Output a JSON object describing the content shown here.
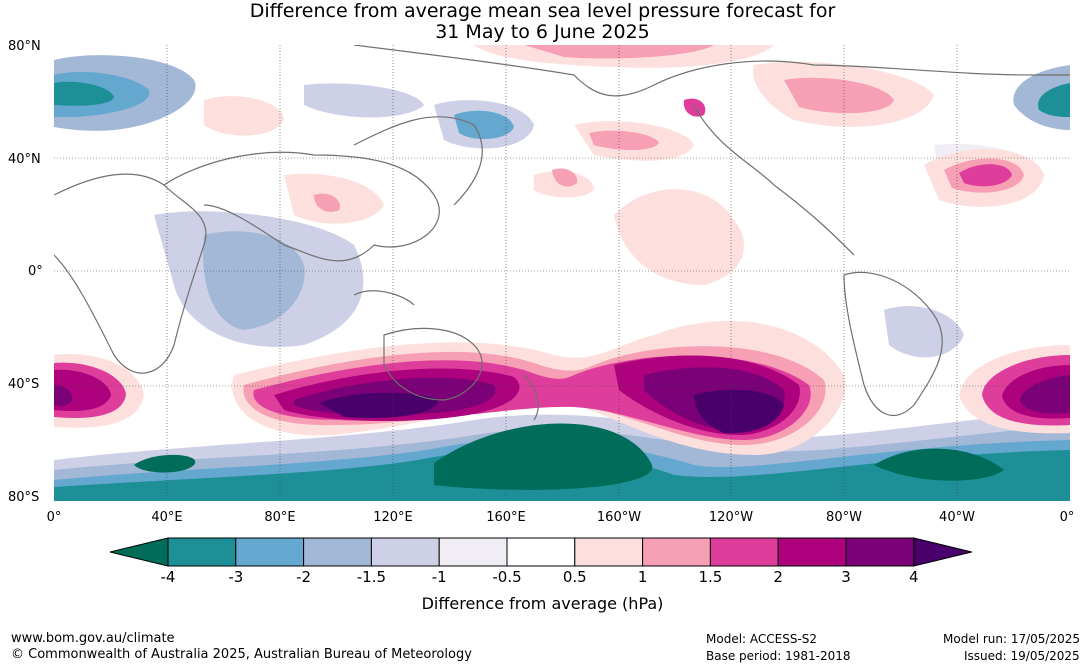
{
  "title_line1": "Difference from average mean sea level pressure forecast for",
  "title_line2": "31 May to 6 June 2025",
  "lat_labels": [
    "80°N",
    "40°N",
    "0°",
    "40°S",
    "80°S"
  ],
  "lon_labels": [
    "0°",
    "40°E",
    "80°E",
    "120°E",
    "160°E",
    "160°W",
    "120°W",
    "80°W",
    "40°W",
    "0°"
  ],
  "colorbar": {
    "label": "Difference from average (hPa)",
    "ticks": [
      "-4",
      "-3",
      "-2",
      "-1.5",
      "-1",
      "-0.5",
      "0.5",
      "1",
      "1.5",
      "2",
      "3",
      "4"
    ],
    "colors": [
      "#006d5b",
      "#1d8f97",
      "#64a8d0",
      "#a3b7d6",
      "#cdd0e6",
      "#f1edf5",
      "#ffffff",
      "#fde0dd",
      "#f79fb5",
      "#de3d9b",
      "#ae017e",
      "#7a0177",
      "#49006a"
    ]
  },
  "footer": {
    "url": "www.bom.gov.au/climate",
    "copyright": "© Commonwealth of Australia 2025, Australian Bureau of Meteorology",
    "model": "Model: ACCESS-S2",
    "base_period": "Base period: 1981-2018",
    "model_run": "Model run: 17/05/2025",
    "issued": "Issued: 19/05/2025"
  }
}
